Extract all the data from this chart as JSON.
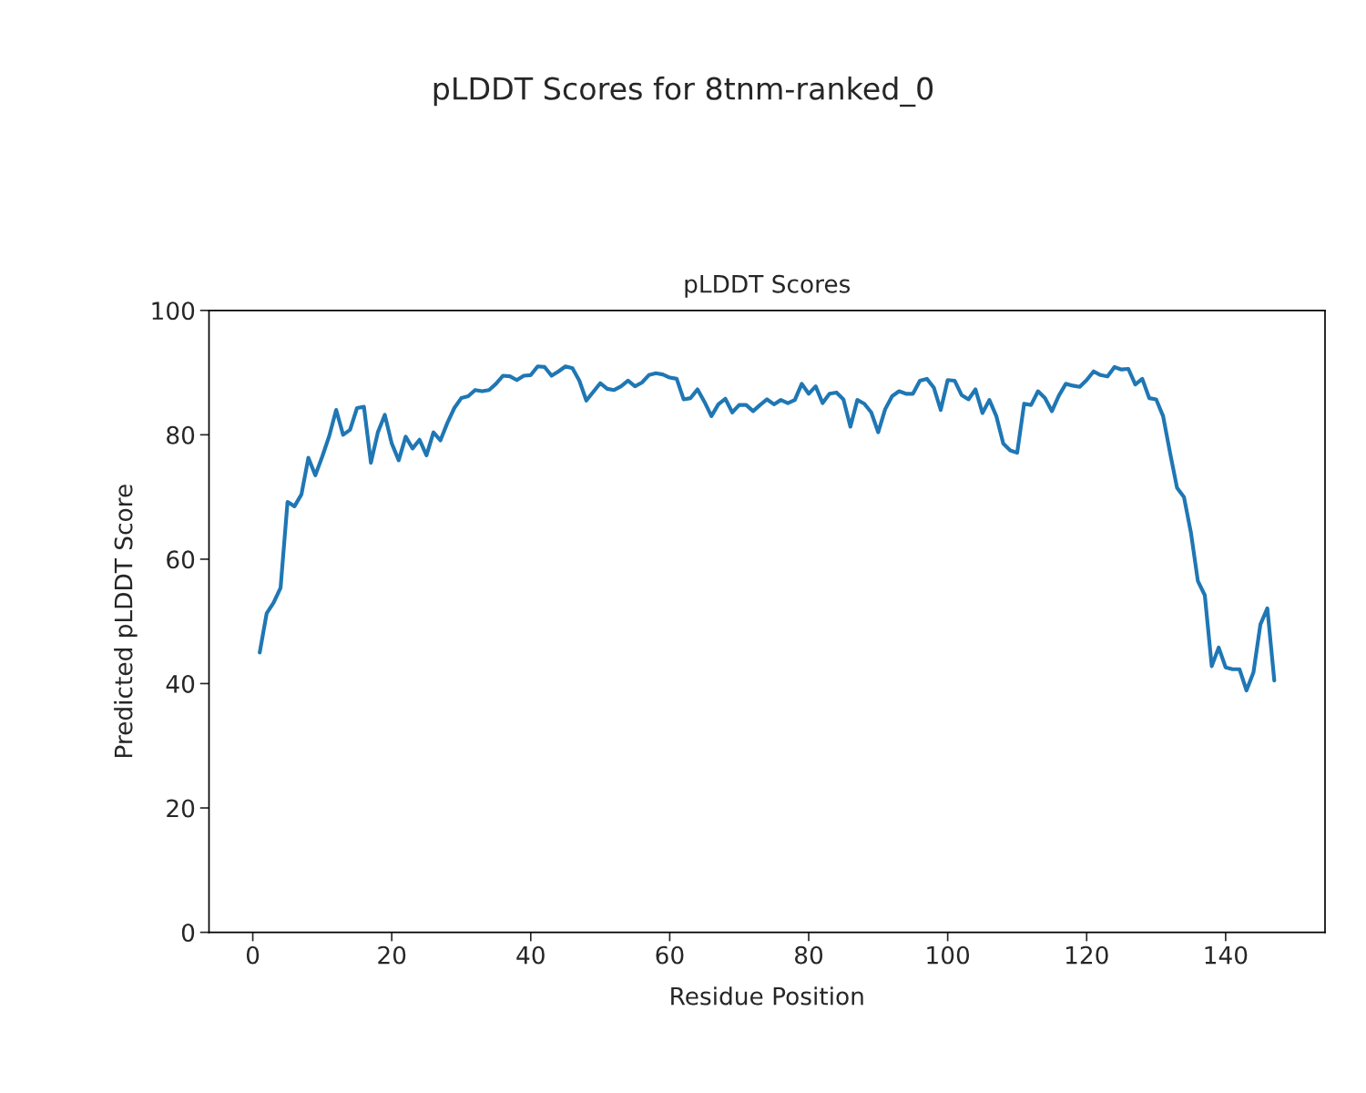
{
  "chart_data": {
    "type": "line",
    "title": "pLDDT Scores for 8tnm-ranked_0",
    "subtitle": "pLDDT Scores",
    "xlabel": "Residue Position",
    "ylabel": "Predicted pLDDT Score",
    "xlim": [
      -6.3,
      154.3
    ],
    "ylim": [
      0,
      100
    ],
    "xticks": [
      0,
      20,
      40,
      60,
      80,
      100,
      120,
      140
    ],
    "yticks": [
      0,
      20,
      40,
      60,
      80,
      100
    ],
    "grid": false,
    "legend": false,
    "series": [
      {
        "color": "#1f77b4",
        "x": [
          1,
          2,
          3,
          4,
          5,
          6,
          7,
          8,
          9,
          10,
          11,
          12,
          13,
          14,
          15,
          16,
          17,
          18,
          19,
          20,
          21,
          22,
          23,
          24,
          25,
          26,
          27,
          28,
          29,
          30,
          31,
          32,
          33,
          34,
          35,
          36,
          37,
          38,
          39,
          40,
          41,
          42,
          43,
          44,
          45,
          46,
          47,
          48,
          49,
          50,
          51,
          52,
          53,
          54,
          55,
          56,
          57,
          58,
          59,
          60,
          61,
          62,
          63,
          64,
          65,
          66,
          67,
          68,
          69,
          70,
          71,
          72,
          73,
          74,
          75,
          76,
          77,
          78,
          79,
          80,
          81,
          82,
          83,
          84,
          85,
          86,
          87,
          88,
          89,
          90,
          91,
          92,
          93,
          94,
          95,
          96,
          97,
          98,
          99,
          100,
          101,
          102,
          103,
          104,
          105,
          106,
          107,
          108,
          109,
          110,
          111,
          112,
          113,
          114,
          115,
          116,
          117,
          118,
          119,
          120,
          121,
          122,
          123,
          124,
          125,
          126,
          127,
          128,
          129,
          130,
          131,
          132,
          133,
          134,
          135,
          136,
          137,
          138,
          139,
          140,
          141,
          142,
          143,
          144,
          145,
          146,
          147
        ],
        "values": [
          45,
          51.3,
          53,
          55.4,
          69.2,
          68.5,
          70.4,
          76.3,
          73.5,
          76.5,
          79.8,
          84,
          80,
          80.8,
          84.3,
          84.5,
          75.5,
          80.4,
          83.2,
          78.6,
          75.9,
          79.7,
          77.8,
          79.2,
          76.7,
          80.4,
          79.1,
          81.9,
          84.3,
          85.9,
          86.2,
          87.2,
          87,
          87.2,
          88.2,
          89.5,
          89.4,
          88.8,
          89.5,
          89.6,
          91,
          90.9,
          89.5,
          90.2,
          91,
          90.7,
          88.7,
          85.5,
          86.9,
          88.3,
          87.4,
          87.2,
          87.8,
          88.7,
          87.8,
          88.4,
          89.6,
          89.9,
          89.7,
          89.2,
          89,
          85.7,
          85.9,
          87.3,
          85.3,
          83,
          84.9,
          85.8,
          83.6,
          84.8,
          84.8,
          83.8,
          84.8,
          85.7,
          84.9,
          85.6,
          85.1,
          85.6,
          88.2,
          86.6,
          87.8,
          85.1,
          86.6,
          86.8,
          85.7,
          81.3,
          85.6,
          85,
          83.6,
          80.4,
          84.1,
          86.2,
          87,
          86.6,
          86.6,
          88.7,
          89,
          87.6,
          84,
          88.8,
          88.7,
          86.4,
          85.7,
          87.3,
          83.5,
          85.6,
          83,
          78.6,
          77.5,
          77.1,
          85,
          84.8,
          87,
          85.9,
          83.8,
          86.3,
          88.2,
          87.9,
          87.7,
          88.8,
          90.2,
          89.6,
          89.4,
          90.9,
          90.5,
          90.6,
          88.1,
          89,
          85.9,
          85.7,
          83,
          77.1,
          71.5,
          70,
          64.3,
          56.5,
          54.2,
          42.8,
          45.8,
          42.6,
          42.3,
          42.3,
          38.9,
          41.8,
          49.5,
          52.1,
          40.5
        ]
      }
    ]
  }
}
